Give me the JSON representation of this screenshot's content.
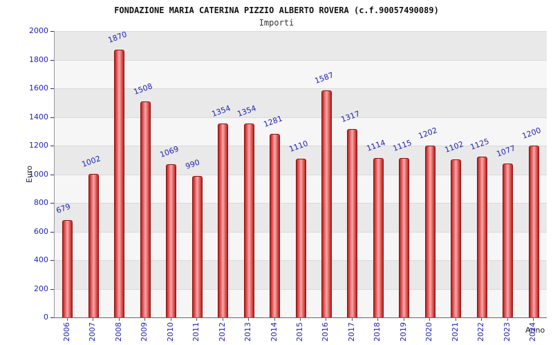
{
  "chart_data": {
    "type": "bar",
    "title": "FONDAZIONE MARIA CATERINA PIZZIO ALBERTO ROVERA (c.f.90057490089)",
    "subtitle": "Importi",
    "xlabel": "Anno",
    "ylabel": "Euro",
    "categories": [
      "2006",
      "2007",
      "2008",
      "2009",
      "2010",
      "2011",
      "2012",
      "2013",
      "2014",
      "2015",
      "2016",
      "2017",
      "2018",
      "2019",
      "2020",
      "2021",
      "2022",
      "2023",
      "2024"
    ],
    "values": [
      679,
      1002,
      1870,
      1508,
      1069,
      990,
      1354,
      1354,
      1281,
      1110,
      1587,
      1317,
      1114,
      1115,
      1202,
      1102,
      1125,
      1077,
      1200
    ],
    "ylim": [
      0,
      2000
    ],
    "ytick_step": 200,
    "grid": true,
    "legend": "none",
    "bar_color": "#c32222",
    "bar_highlight_color": "#f6abab",
    "label_color": "#2222bb",
    "band_color": "#e9e9e9"
  }
}
